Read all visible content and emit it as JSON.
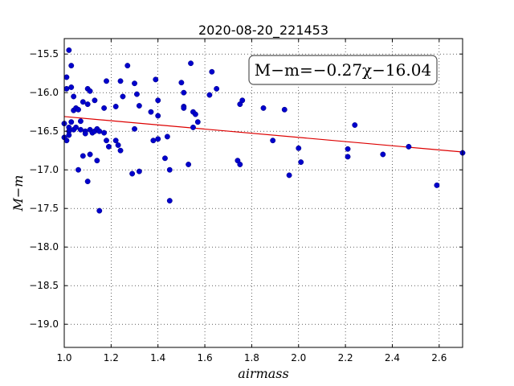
{
  "chart_data": {
    "type": "scatter",
    "title": "2020-08-20_221453",
    "xlabel": "airmass",
    "ylabel": "M−m",
    "xlim": [
      1.0,
      2.7
    ],
    "ylim": [
      -19.3,
      -15.3
    ],
    "y_inverted": true,
    "grid": true,
    "xticks": [
      1.0,
      1.2,
      1.4,
      1.6,
      1.8,
      2.0,
      2.2,
      2.4,
      2.6
    ],
    "xtick_labels": [
      "1.0",
      "1.2",
      "1.4",
      "1.6",
      "1.8",
      "2.0",
      "2.2",
      "2.4",
      "2.6"
    ],
    "yticks": [
      -15.5,
      -16.0,
      -16.5,
      -17.0,
      -17.5,
      -18.0,
      -18.5,
      -19.0
    ],
    "ytick_labels": [
      "−15.5",
      "−16.0",
      "−16.5",
      "−17.0",
      "−17.5",
      "−18.0",
      "−18.5",
      "−19.0"
    ],
    "annotation": "M−m=−0.27χ−16.04",
    "colors": {
      "points": "#0000cc",
      "fit": "#dd0000"
    },
    "fit": {
      "slope": -0.27,
      "intercept": -16.04
    },
    "series": [
      {
        "x": [
          1.0,
          1.0,
          1.01,
          1.01,
          1.01,
          1.02,
          1.02,
          1.02,
          1.02,
          1.03,
          1.03,
          1.03,
          1.04,
          1.04,
          1.04,
          1.05,
          1.05,
          1.06,
          1.06,
          1.07,
          1.07,
          1.08,
          1.08,
          1.09,
          1.09,
          1.1,
          1.1,
          1.1,
          1.11,
          1.11,
          1.11,
          1.12,
          1.13,
          1.13,
          1.14,
          1.14,
          1.15,
          1.15,
          1.17,
          1.17,
          1.18,
          1.18,
          1.19,
          1.22,
          1.22,
          1.23,
          1.24,
          1.24,
          1.25,
          1.27,
          1.29,
          1.3,
          1.3,
          1.31,
          1.32,
          1.32,
          1.37,
          1.38,
          1.39,
          1.4,
          1.4,
          1.4,
          1.43,
          1.44,
          1.45,
          1.45,
          1.5,
          1.51,
          1.51,
          1.51,
          1.53,
          1.54,
          1.55,
          1.55,
          1.56,
          1.57,
          1.62,
          1.63,
          1.65,
          1.74,
          1.75,
          1.75,
          1.76,
          1.85,
          1.89,
          1.94,
          1.96,
          2.0,
          2.01,
          2.21,
          2.21,
          2.24,
          2.36,
          2.47,
          2.59,
          2.7
        ],
        "y": [
          -16.4,
          -16.58,
          -15.8,
          -15.95,
          -16.62,
          -15.45,
          -16.45,
          -16.5,
          -16.55,
          -15.65,
          -15.93,
          -16.38,
          -16.05,
          -16.23,
          -16.48,
          -16.2,
          -16.45,
          -16.22,
          -17.0,
          -16.37,
          -16.48,
          -16.12,
          -16.82,
          -16.5,
          -16.53,
          -15.95,
          -16.15,
          -17.15,
          -15.98,
          -16.48,
          -16.8,
          -16.52,
          -16.1,
          -16.5,
          -16.47,
          -16.88,
          -16.5,
          -17.53,
          -16.2,
          -16.52,
          -15.85,
          -16.62,
          -16.7,
          -16.18,
          -16.62,
          -16.68,
          -15.85,
          -16.75,
          -16.05,
          -15.65,
          -17.05,
          -15.88,
          -16.47,
          -16.02,
          -16.17,
          -17.02,
          -16.25,
          -16.62,
          -15.83,
          -16.1,
          -16.3,
          -16.6,
          -16.85,
          -16.57,
          -17.0,
          -17.4,
          -15.87,
          -16.0,
          -16.18,
          -16.2,
          -16.93,
          -15.62,
          -16.25,
          -16.45,
          -16.28,
          -16.38,
          -16.03,
          -15.73,
          -15.95,
          -16.88,
          -16.15,
          -16.93,
          -16.1,
          -16.2,
          -16.62,
          -16.22,
          -17.07,
          -16.72,
          -16.9,
          -16.73,
          -16.83,
          -16.42,
          -16.8,
          -16.7,
          -17.2,
          -16.78
        ]
      }
    ]
  }
}
